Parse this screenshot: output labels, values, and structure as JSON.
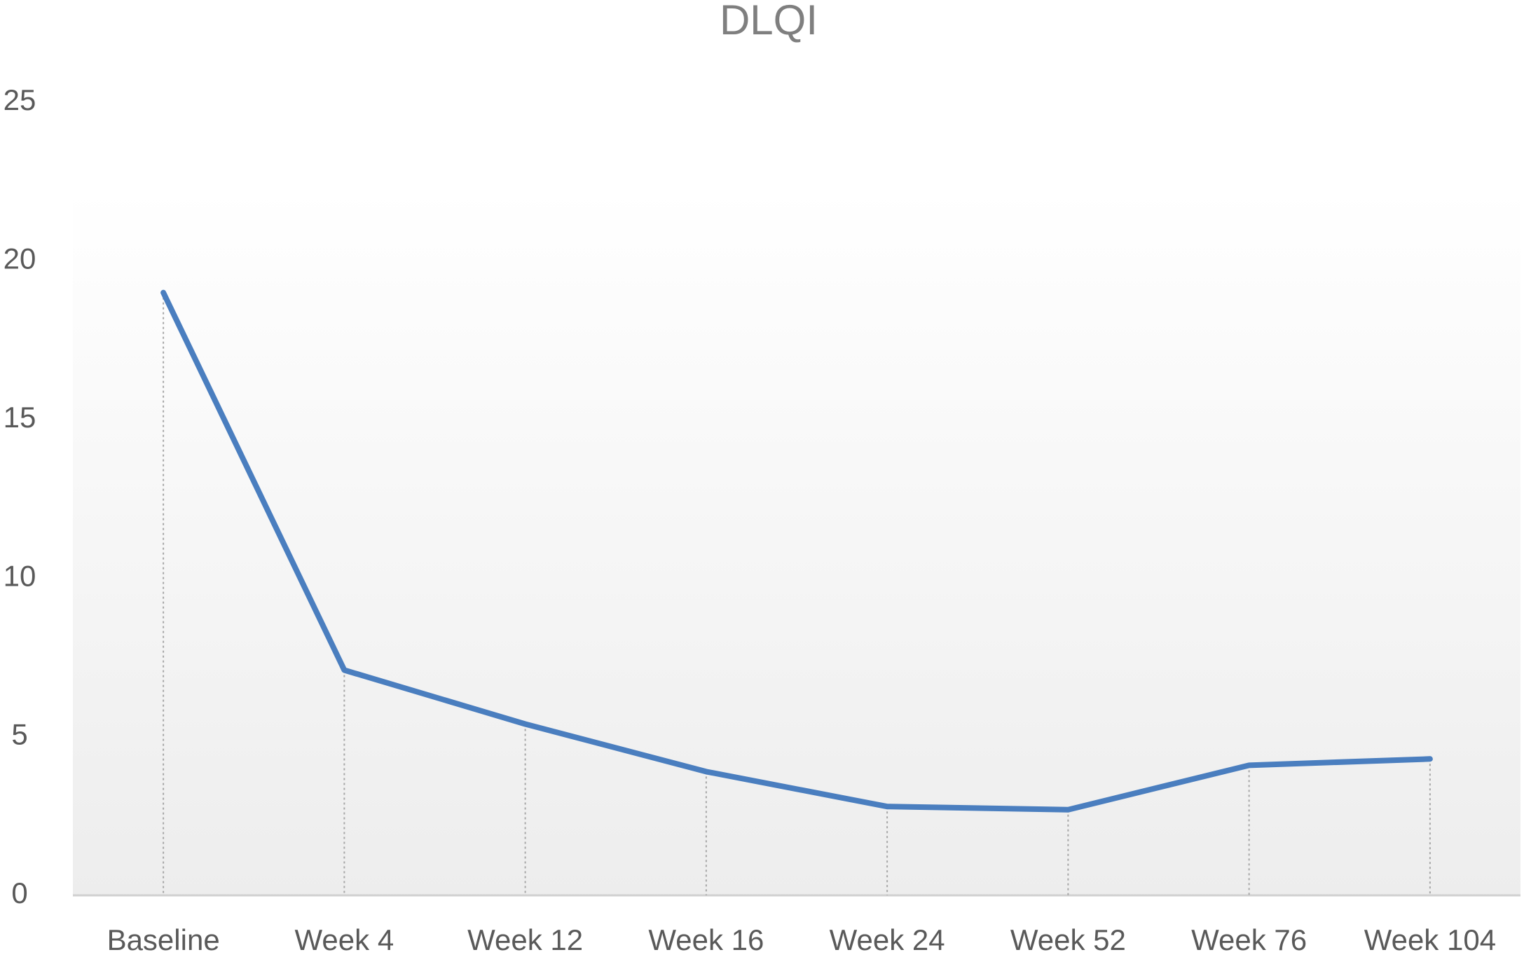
{
  "chart_data": {
    "type": "line",
    "title": "DLQI",
    "categories": [
      "Baseline",
      "Week 4",
      "Week 12",
      "Week 16",
      "Week 24",
      "Week 52",
      "Week 76",
      "Week 104"
    ],
    "series": [
      {
        "name": "DLQI",
        "color": "#4a7ebf",
        "values": [
          19.0,
          7.1,
          5.4,
          3.9,
          2.8,
          2.7,
          4.1,
          4.3
        ]
      }
    ],
    "ylim": [
      0,
      25
    ],
    "yticks": [
      0,
      5,
      10,
      15,
      20,
      25
    ],
    "grid": false,
    "drop_lines": true
  }
}
